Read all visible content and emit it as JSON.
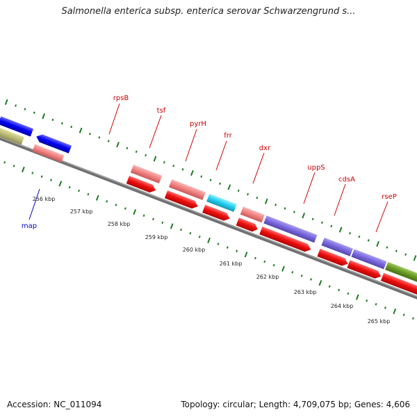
{
  "title": "Salmonella enterica subsp. enterica serovar Schwarzengrund s...",
  "footer": {
    "accession": "Accession: NC_011094",
    "summary": "Topology: circular; Length: 4,709,075 bp; Genes: 4,606"
  },
  "colors": {
    "backbone": "#808080",
    "tick": "#1e7a1e",
    "cds_red": "#ee1111",
    "gene_label": "#cc0000",
    "selected_label": "#0000cc"
  },
  "scale_labels": [
    "256 kbp",
    "257 kbp",
    "258 kbp",
    "259 kbp",
    "260 kbp",
    "261 kbp",
    "262 kbp",
    "263 kbp",
    "264 kbp",
    "265 kbp"
  ],
  "genes": [
    {
      "name": "rpsB",
      "color": "#f08080"
    },
    {
      "name": "tsf",
      "color": "#f08080"
    },
    {
      "name": "pyrH",
      "color": "#22ccee"
    },
    {
      "name": "frr",
      "color": "#f08080"
    },
    {
      "name": "dxr",
      "color": "#7766dd"
    },
    {
      "name": "uppS",
      "color": "#7766dd"
    },
    {
      "name": "cdsA",
      "color": "#7766dd"
    },
    {
      "name": "rseP",
      "color": "#669922"
    },
    {
      "name": "map",
      "color": "#f08080"
    }
  ]
}
